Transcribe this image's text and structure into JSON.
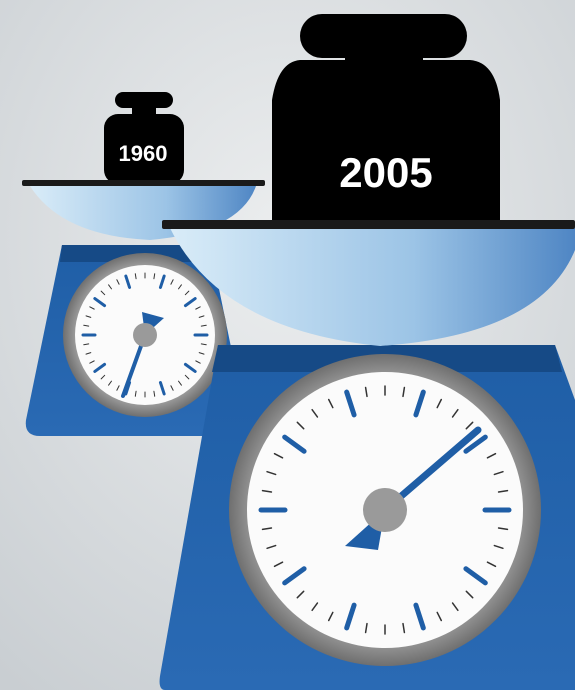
{
  "weights": [
    {
      "label": "1960"
    },
    {
      "label": "2005"
    }
  ]
}
